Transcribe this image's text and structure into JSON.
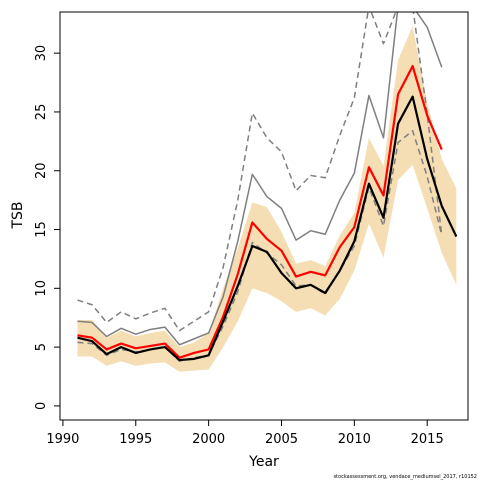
{
  "chart_data": {
    "type": "line",
    "xlabel": "Year",
    "ylabel": "TSB",
    "xlim": [
      1989.8,
      2017.8
    ],
    "ylim": [
      -1.2,
      33.5
    ],
    "xticks": [
      1990,
      1995,
      2000,
      2005,
      2010,
      2015
    ],
    "yticks": [
      0,
      5,
      10,
      15,
      20,
      25,
      30
    ],
    "grid": false,
    "legend": "none",
    "credit": "stockassessment.org, vendace_mediumsel_2017, r10152",
    "colors": {
      "band": "#f5deb3",
      "estimate": "#000000",
      "red_line": "#ff0000",
      "gray_solid": "#7f7f7f",
      "gray_dashed": "#7f7f7f"
    },
    "series": [
      {
        "style": "band",
        "x": [
          1991,
          1992,
          1993,
          1994,
          1995,
          1996,
          1997,
          1998,
          1999,
          2000,
          2001,
          2002,
          2003,
          2004,
          2005,
          2006,
          2007,
          2008,
          2009,
          2010,
          2011,
          2012,
          2013,
          2014,
          2015,
          2016,
          2017
        ],
        "lower": [
          4.2,
          4.2,
          3.4,
          3.8,
          3.4,
          3.6,
          3.7,
          2.9,
          3.0,
          3.1,
          5.0,
          7.2,
          10.0,
          9.6,
          8.9,
          8.0,
          8.3,
          7.7,
          9.1,
          11.5,
          15.5,
          12.6,
          19.2,
          20.5,
          16.8,
          13.0,
          10.3
        ],
        "upper": [
          7.3,
          7.3,
          5.8,
          6.4,
          5.9,
          6.2,
          6.4,
          5.0,
          5.4,
          6.2,
          10.0,
          13.4,
          17.3,
          16.9,
          14.8,
          12.1,
          12.4,
          11.9,
          14.5,
          16.4,
          22.8,
          20.4,
          29.4,
          32.3,
          25.8,
          21.0,
          18.5
        ]
      },
      {
        "style": "gray-dashed",
        "x": [
          1991,
          1992,
          1993,
          1994,
          1995,
          1996,
          1997,
          1998,
          1999,
          2000,
          2001,
          2002,
          2003,
          2004,
          2005,
          2006,
          2007,
          2008,
          2009,
          2010,
          2011,
          2012,
          2013,
          2014,
          2015,
          2016
        ],
        "values": [
          9.0,
          8.6,
          7.1,
          8.0,
          7.4,
          7.9,
          8.3,
          6.4,
          7.2,
          8.0,
          11.8,
          17.5,
          24.9,
          22.8,
          21.6,
          18.3,
          19.6,
          19.4,
          23.0,
          26.2,
          34.0,
          30.8,
          34.0,
          34.0,
          24.8,
          14.5
        ]
      },
      {
        "style": "gray-solid",
        "x": [
          1991,
          1992,
          1993,
          1994,
          1995,
          1996,
          1997,
          1998,
          1999,
          2000,
          2001,
          2002,
          2003,
          2004,
          2005,
          2006,
          2007,
          2008,
          2009,
          2010,
          2011,
          2012,
          2013,
          2014,
          2015,
          2016
        ],
        "values": [
          7.2,
          7.1,
          5.9,
          6.6,
          6.1,
          6.5,
          6.7,
          5.2,
          5.7,
          6.2,
          9.3,
          14.0,
          19.7,
          17.8,
          16.8,
          14.1,
          14.9,
          14.6,
          17.5,
          19.8,
          26.4,
          22.8,
          34.0,
          34.0,
          32.2,
          28.8
        ]
      },
      {
        "style": "gray-dashed",
        "x": [
          1991,
          1992,
          1993,
          1994,
          1995,
          1996,
          1997,
          1998,
          1999,
          2000,
          2001,
          2002,
          2003,
          2004,
          2005,
          2006,
          2007,
          2008,
          2009,
          2010,
          2011,
          2012,
          2013,
          2014,
          2015,
          2016
        ],
        "values": [
          5.4,
          5.3,
          4.3,
          4.8,
          4.6,
          4.8,
          5.0,
          3.8,
          4.1,
          4.3,
          6.8,
          9.7,
          13.9,
          13.0,
          12.0,
          10.2,
          10.3,
          9.5,
          11.5,
          13.6,
          18.6,
          15.3,
          22.4,
          23.4,
          19.5,
          14.5
        ]
      },
      {
        "style": "red",
        "x": [
          1991,
          1992,
          1993,
          1994,
          1995,
          1996,
          1997,
          1998,
          1999,
          2000,
          2001,
          2002,
          2003,
          2004,
          2005,
          2006,
          2007,
          2008,
          2009,
          2010,
          2011,
          2012,
          2013,
          2014,
          2015,
          2016
        ],
        "values": [
          6.0,
          5.8,
          4.8,
          5.3,
          4.9,
          5.1,
          5.3,
          4.1,
          4.5,
          4.8,
          7.6,
          11.2,
          15.6,
          14.2,
          13.2,
          11.0,
          11.4,
          11.1,
          13.5,
          15.2,
          20.3,
          17.9,
          26.5,
          28.9,
          24.7,
          21.8
        ]
      },
      {
        "style": "black",
        "x": [
          1991,
          1992,
          1993,
          1994,
          1995,
          1996,
          1997,
          1998,
          1999,
          2000,
          2001,
          2002,
          2003,
          2004,
          2005,
          2006,
          2007,
          2008,
          2009,
          2010,
          2011,
          2012,
          2013,
          2014,
          2015,
          2016,
          2017
        ],
        "values": [
          5.8,
          5.5,
          4.4,
          5.0,
          4.5,
          4.8,
          5.0,
          3.9,
          4.0,
          4.3,
          7.2,
          10.2,
          13.6,
          13.1,
          11.3,
          10.0,
          10.3,
          9.6,
          11.5,
          14.0,
          18.9,
          16.0,
          24.0,
          26.3,
          21.0,
          17.0,
          14.4
        ]
      }
    ]
  }
}
